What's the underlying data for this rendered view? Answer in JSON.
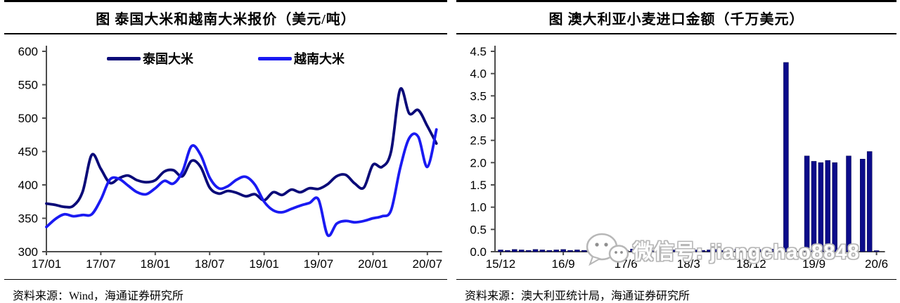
{
  "colors": {
    "thailand_navy": "#0a0a78",
    "vietnam_blue": "#1a1af2",
    "bar_navy": "#0b0b8a",
    "axis": "#4d4d4d",
    "text": "#000000",
    "watermark_outline": "#b7b7b7"
  },
  "panels": [
    {
      "title": "图  泰国大米和越南大米报价（美元/吨）",
      "source": "资料来源：Wind，海通证券研究所"
    },
    {
      "title": "图  澳大利亚小麦进口金额（千万美元）",
      "source": "资料来源：澳大利亚统计局，海通证券研究所"
    }
  ],
  "watermark": {
    "icon": "wechat-bubbles-icon",
    "text": "微信号: jiangchao8848"
  },
  "chart_data": [
    {
      "type": "line",
      "title": "图  泰国大米和越南大米报价（美元/吨）",
      "xlabel": "",
      "ylabel": "",
      "ylim": [
        300,
        600
      ],
      "ytick_step": 50,
      "yticks": [
        "300",
        "350",
        "400",
        "450",
        "500",
        "550",
        "600"
      ],
      "xtick_every": 6,
      "xtick_labels": [
        "17/01",
        "17/07",
        "18/01",
        "18/07",
        "19/01",
        "19/07",
        "20/01",
        "20/07"
      ],
      "grid": false,
      "legend_position": "top-center",
      "categories": [
        "17/01",
        "17/02",
        "17/03",
        "17/04",
        "17/05",
        "17/06",
        "17/07",
        "17/08",
        "17/09",
        "17/10",
        "17/11",
        "17/12",
        "18/01",
        "18/02",
        "18/03",
        "18/04",
        "18/05",
        "18/06",
        "18/07",
        "18/08",
        "18/09",
        "18/10",
        "18/11",
        "18/12",
        "19/01",
        "19/02",
        "19/03",
        "19/04",
        "19/05",
        "19/06",
        "19/07",
        "19/08",
        "19/09",
        "19/10",
        "19/11",
        "19/12",
        "20/01",
        "20/02",
        "20/03",
        "20/04",
        "20/05",
        "20/06",
        "20/07",
        "20/08"
      ],
      "series": [
        {
          "name": "泰国大米",
          "color": "#0a0a78",
          "values": [
            372,
            370,
            367,
            369,
            390,
            445,
            424,
            403,
            410,
            414,
            407,
            404,
            407,
            420,
            422,
            413,
            436,
            427,
            396,
            387,
            391,
            388,
            383,
            386,
            377,
            389,
            385,
            393,
            389,
            395,
            394,
            401,
            413,
            415,
            402,
            396,
            430,
            427,
            450,
            543,
            507,
            512,
            488,
            462
          ]
        },
        {
          "name": "越南大米",
          "color": "#1a1af2",
          "values": [
            337,
            349,
            356,
            353,
            355,
            356,
            378,
            408,
            409,
            399,
            389,
            386,
            395,
            406,
            402,
            420,
            458,
            445,
            411,
            395,
            398,
            408,
            412,
            400,
            375,
            362,
            359,
            364,
            369,
            373,
            378,
            325,
            342,
            346,
            344,
            346,
            350,
            353,
            362,
            425,
            470,
            472,
            427,
            483
          ]
        }
      ]
    },
    {
      "type": "bar",
      "title": "图  澳大利亚小麦进口金额（千万美元）",
      "xlabel": "",
      "ylabel": "",
      "ylim": [
        0,
        4.5
      ],
      "ytick_step": 0.5,
      "yticks": [
        "0.0",
        "0.5",
        "1.0",
        "1.5",
        "2.0",
        "2.5",
        "3.0",
        "3.5",
        "4.0",
        "4.5"
      ],
      "xtick_every": 9,
      "xtick_labels": [
        "15/12",
        "16/9",
        "17/6",
        "18/3",
        "18/12",
        "19/9",
        "20/6"
      ],
      "grid": false,
      "bar_color": "#0b0b8a",
      "categories": [
        "15/12",
        "16/01",
        "16/02",
        "16/03",
        "16/04",
        "16/05",
        "16/06",
        "16/07",
        "16/08",
        "16/09",
        "16/10",
        "16/11",
        "16/12",
        "17/01",
        "17/02",
        "17/03",
        "17/04",
        "17/05",
        "17/06",
        "17/07",
        "17/08",
        "17/09",
        "17/10",
        "17/11",
        "17/12",
        "18/01",
        "18/02",
        "18/03",
        "18/04",
        "18/05",
        "18/06",
        "18/07",
        "18/08",
        "18/09",
        "18/10",
        "18/11",
        "18/12",
        "19/01",
        "19/02",
        "19/03",
        "19/04",
        "19/05",
        "19/06",
        "19/07",
        "19/08",
        "19/09",
        "19/10",
        "19/11",
        "19/12",
        "20/01",
        "20/02",
        "20/03",
        "20/04",
        "20/05",
        "20/06"
      ],
      "values": [
        0.04,
        0.03,
        0.05,
        0.04,
        0.03,
        0.05,
        0.04,
        0.03,
        0.04,
        0.05,
        0.03,
        0.04,
        0.03,
        0.05,
        0.04,
        0.03,
        0.05,
        0.04,
        0.03,
        0.06,
        0.04,
        0.05,
        0.03,
        0.04,
        0.05,
        0.04,
        0.03,
        0.05,
        0.04,
        0.03,
        0.04,
        0.05,
        0.03,
        0.04,
        0.06,
        0.04,
        0.03,
        0.05,
        0.04,
        0.06,
        0.05,
        4.25,
        0.05,
        0,
        2.15,
        2.03,
        2.0,
        2.05,
        2.0,
        0.05,
        2.15,
        0.03,
        2.08,
        2.25,
        0.02
      ]
    }
  ]
}
